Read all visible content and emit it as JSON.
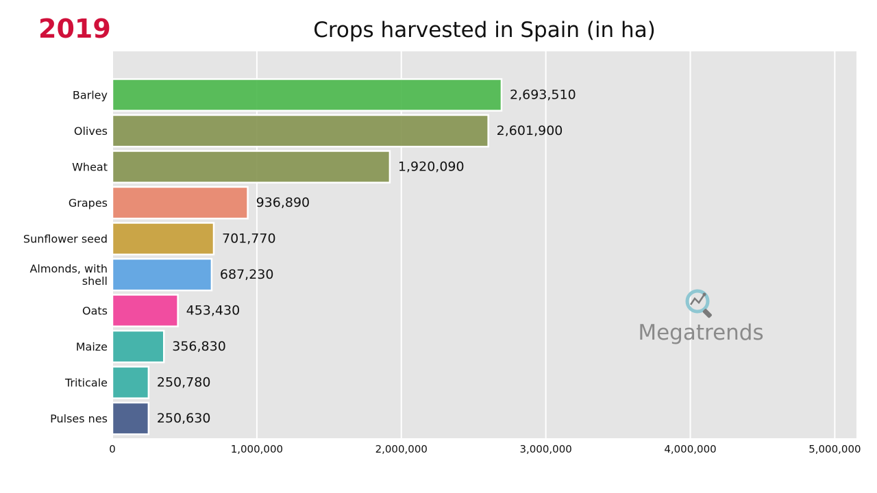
{
  "year_label": "2019",
  "colors": {
    "year": "#d0103a",
    "plot_bg": "#e5e5e5",
    "grid": "#ffffff"
  },
  "watermark": {
    "text": "Megatrends",
    "icon": "magnifier-trend-icon"
  },
  "chart_data": {
    "type": "bar",
    "orientation": "horizontal",
    "title": "Crops harvested in Spain (in ha)",
    "categories": [
      "Barley",
      "Olives",
      "Wheat",
      "Grapes",
      "Sunflower seed",
      "Almonds, with shell",
      "Oats",
      "Maize",
      "Triticale",
      "Pulses nes"
    ],
    "values": [
      2693510,
      2601900,
      1920090,
      936890,
      701770,
      687230,
      453430,
      356830,
      250780,
      250630
    ],
    "value_labels": [
      "2,693,510",
      "2,601,900",
      "1,920,090",
      "936,890",
      "701,770",
      "687,230",
      "453,430",
      "356,830",
      "250,780",
      "250,630"
    ],
    "bar_colors": [
      "#4db84e",
      "#879553",
      "#879553",
      "#e8866b",
      "#c89f3a",
      "#5ba3e3",
      "#f2409a",
      "#38b0a6",
      "#38b0a6",
      "#445a8a"
    ],
    "xlim": [
      0,
      5150000
    ],
    "xticks": [
      0,
      1000000,
      2000000,
      3000000,
      4000000,
      5000000
    ],
    "xtick_labels": [
      "0",
      "1,000,000",
      "2,000,000",
      "3,000,000",
      "4,000,000",
      "5,000,000"
    ],
    "xlabel": "",
    "ylabel": "",
    "grid": true
  }
}
